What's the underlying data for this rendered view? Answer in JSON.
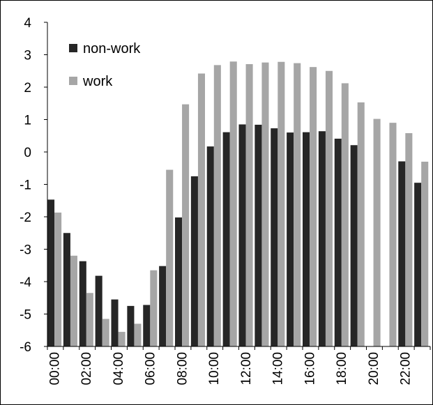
{
  "chart_data": {
    "type": "bar",
    "title": "",
    "xlabel": "",
    "ylabel": "",
    "ylim": [
      -6,
      4
    ],
    "yticks": [
      -6,
      -5,
      -4,
      -3,
      -2,
      -1,
      0,
      1,
      2,
      3,
      4
    ],
    "ytick_labels": [
      "-6",
      "-5",
      "-4",
      "-3",
      "-2",
      "-1",
      "0",
      "1",
      "2",
      "3",
      "4"
    ],
    "grid": false,
    "legend_position": "top-left",
    "categories": [
      "00:00",
      "01:00",
      "02:00",
      "03:00",
      "04:00",
      "05:00",
      "06:00",
      "07:00",
      "08:00",
      "09:00",
      "10:00",
      "11:00",
      "12:00",
      "13:00",
      "14:00",
      "15:00",
      "16:00",
      "17:00",
      "18:00",
      "19:00",
      "20:00",
      "21:00",
      "22:00",
      "23:00"
    ],
    "xtick_labels": [
      "00:00",
      "",
      "02:00",
      "",
      "04:00",
      "",
      "06:00",
      "",
      "08:00",
      "",
      "10:00",
      "",
      "12:00",
      "",
      "14:00",
      "",
      "16:00",
      "",
      "18:00",
      "",
      "20:00",
      "",
      "22:00",
      ""
    ],
    "series": [
      {
        "name": "non-work",
        "color": "#262626",
        "values": [
          -1.47,
          -2.5,
          -3.37,
          -3.82,
          -4.55,
          -4.75,
          -4.72,
          -3.52,
          -2.02,
          -0.75,
          0.17,
          0.61,
          0.85,
          0.84,
          0.73,
          0.6,
          0.61,
          0.64,
          0.41,
          0.21,
          null,
          null,
          -0.29,
          -0.95
        ]
      },
      {
        "name": "work",
        "color": "#a6a6a6",
        "values": [
          -1.87,
          -3.2,
          -4.35,
          -5.15,
          -5.55,
          -5.3,
          -3.65,
          -0.55,
          1.47,
          2.42,
          2.68,
          2.79,
          2.71,
          2.76,
          2.78,
          2.74,
          2.62,
          2.5,
          2.12,
          1.53,
          1.02,
          0.9,
          0.58,
          -0.3
        ]
      }
    ]
  }
}
